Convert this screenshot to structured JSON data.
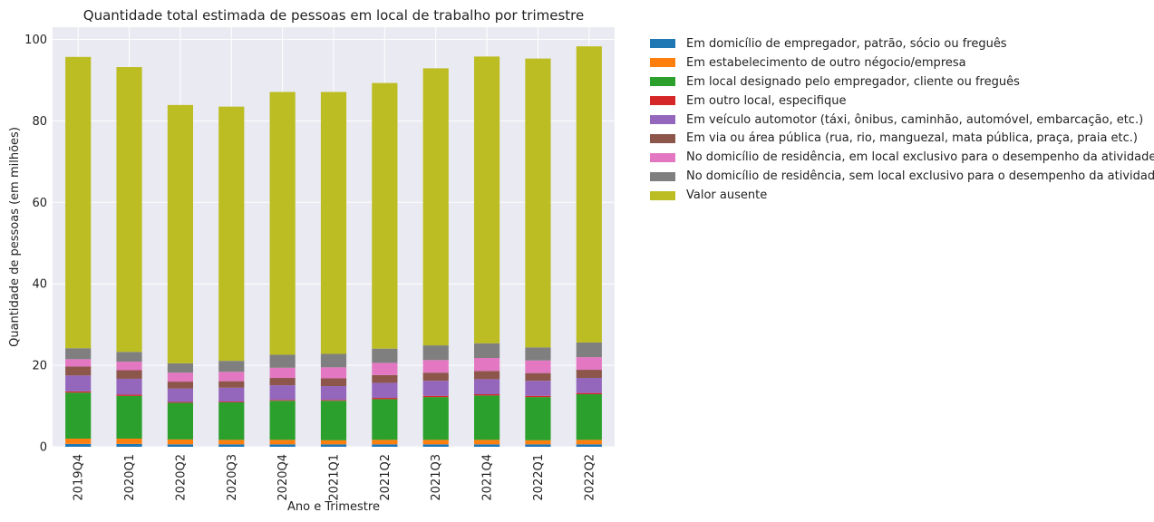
{
  "chart_data": {
    "type": "bar",
    "stacked": true,
    "title": "Quantidade total estimada de pessoas em local de trabalho por trimestre",
    "xlabel": "Ano e Trimestre",
    "ylabel": "Quantidade de pessoas (em milhões)",
    "ylim": [
      0,
      103
    ],
    "yticks": [
      0,
      20,
      40,
      60,
      80,
      100
    ],
    "grid": true,
    "legend_position": "outside-right",
    "categories": [
      "2019Q4",
      "2020Q1",
      "2020Q2",
      "2020Q3",
      "2020Q4",
      "2021Q1",
      "2021Q2",
      "2021Q3",
      "2021Q4",
      "2022Q1",
      "2022Q2"
    ],
    "series": [
      {
        "name": "Em domicílio de empregador, patrão, sócio ou freguês",
        "color": "#1f77b4",
        "values": [
          0.7,
          0.7,
          0.6,
          0.6,
          0.6,
          0.6,
          0.6,
          0.6,
          0.6,
          0.6,
          0.6
        ]
      },
      {
        "name": "Em estabelecimento de outro négocio/empresa",
        "color": "#ff7f0e",
        "values": [
          1.3,
          1.3,
          1.2,
          1.1,
          1.1,
          1.0,
          1.1,
          1.1,
          1.1,
          1.0,
          1.1
        ]
      },
      {
        "name": "Em local designado pelo empregador, cliente ou freguês",
        "color": "#2ca02c",
        "values": [
          11.3,
          10.5,
          9.0,
          9.2,
          9.6,
          9.7,
          10.0,
          10.5,
          10.9,
          10.6,
          11.2
        ]
      },
      {
        "name": "Em outro local, especifique",
        "color": "#d62728",
        "values": [
          0.3,
          0.3,
          0.2,
          0.2,
          0.2,
          0.2,
          0.3,
          0.3,
          0.3,
          0.3,
          0.3
        ]
      },
      {
        "name": "Em veículo automotor (táxi, ônibus, caminhão, automóvel, embarcação, etc.)",
        "color": "#9467bd",
        "values": [
          3.9,
          3.9,
          3.3,
          3.4,
          3.6,
          3.4,
          3.7,
          3.7,
          3.7,
          3.7,
          3.7
        ]
      },
      {
        "name": "Em via ou área pública (rua, rio, manguezal, mata pública, praça, praia etc.)",
        "color": "#8c564b",
        "values": [
          2.2,
          2.1,
          1.7,
          1.6,
          1.8,
          1.9,
          1.9,
          2.0,
          2.0,
          1.9,
          2.0
        ]
      },
      {
        "name": "No domicílio de residência, em local exclusivo para o desempenho da atividade",
        "color": "#e377c2",
        "values": [
          1.8,
          2.1,
          2.2,
          2.3,
          2.5,
          2.7,
          3.0,
          3.1,
          3.2,
          3.1,
          3.1
        ]
      },
      {
        "name": "No domicílio de residência, sem local exclusivo para o desempenho da atividade",
        "color": "#7f7f7f",
        "values": [
          2.7,
          2.4,
          2.3,
          2.7,
          3.2,
          3.3,
          3.5,
          3.6,
          3.6,
          3.2,
          3.6
        ]
      },
      {
        "name": "Valor ausente",
        "color": "#bcbd22",
        "values": [
          71.5,
          69.9,
          63.4,
          62.4,
          64.5,
          64.3,
          65.2,
          68.0,
          70.4,
          70.9,
          72.7
        ]
      }
    ]
  }
}
